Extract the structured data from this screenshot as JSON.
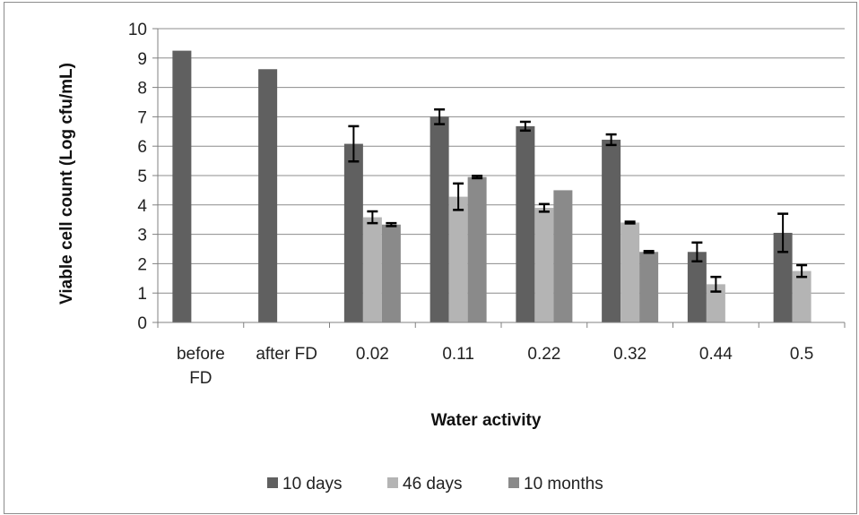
{
  "chart_data": {
    "type": "bar",
    "title": "",
    "xlabel": "Water activity",
    "ylabel": "Viable cell count  (Log cfu/mL)",
    "ylim": [
      0,
      10
    ],
    "yticks": [
      "0",
      "1",
      "2",
      "3",
      "4",
      "5",
      "6",
      "7",
      "8",
      "9",
      "10"
    ],
    "grid": true,
    "legend_position": "bottom",
    "categories": [
      [
        "before",
        "FD"
      ],
      [
        "after FD"
      ],
      [
        "0.02"
      ],
      [
        "0.11"
      ],
      [
        "0.22"
      ],
      [
        "0.32"
      ],
      [
        "0.44"
      ],
      [
        "0.5"
      ]
    ],
    "series": [
      {
        "name": "10 days",
        "color": "#606060",
        "values": [
          9.25,
          8.62,
          6.08,
          7.0,
          6.68,
          6.22,
          2.4,
          3.05
        ],
        "errors": [
          null,
          null,
          0.6,
          0.25,
          0.15,
          0.18,
          0.32,
          0.65
        ]
      },
      {
        "name": "46 days",
        "color": "#b4b4b4",
        "values": [
          null,
          null,
          3.58,
          4.28,
          3.9,
          3.4,
          1.3,
          1.75
        ],
        "errors": [
          null,
          null,
          0.2,
          0.45,
          0.13,
          0.03,
          0.25,
          0.2
        ]
      },
      {
        "name": "10 months",
        "color": "#8a8a8a",
        "values": [
          null,
          null,
          3.33,
          4.95,
          4.5,
          2.4,
          null,
          null
        ],
        "errors": [
          null,
          null,
          0.05,
          0.04,
          null,
          0.03,
          null,
          null
        ]
      }
    ]
  }
}
